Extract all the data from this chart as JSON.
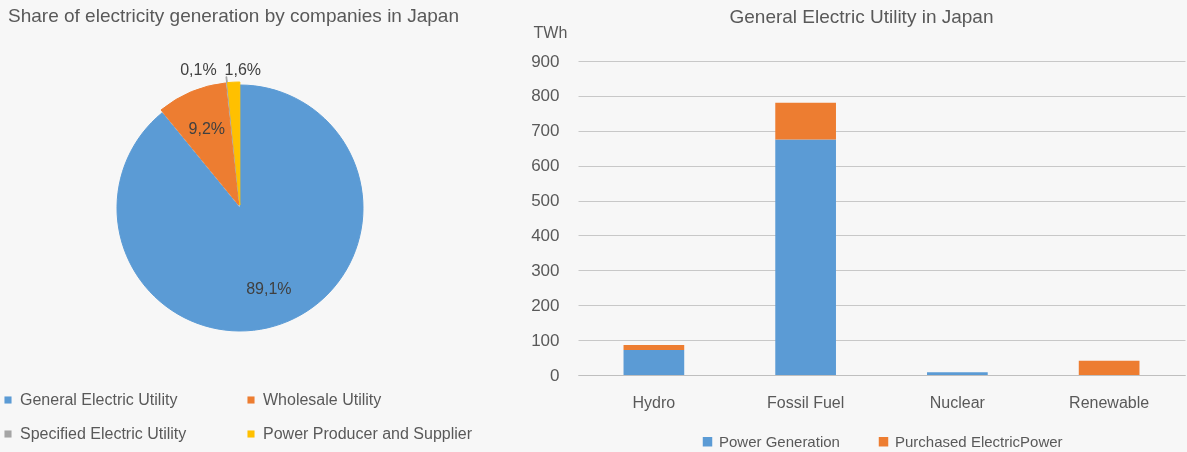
{
  "chart_data": [
    {
      "type": "pie",
      "title": "Share of electricity generation by companies in Japan",
      "categories": [
        "General Electric Utility",
        "Wholesale Utility",
        "Specified Electric Utility",
        "Power Producer and Supplier"
      ],
      "values": [
        89.1,
        9.2,
        0.1,
        1.6
      ],
      "colors": [
        "#5b9bd5",
        "#ed7d31",
        "#a5a5a5",
        "#ffc000"
      ],
      "value_labels": [
        "89,1%",
        "9,2%",
        "0,1%",
        "1,6%"
      ],
      "legend": "bottom"
    },
    {
      "type": "bar",
      "title": "General Electric Utility in Japan",
      "ylabel": "TWh",
      "categories": [
        "Hydro",
        "Fossil Fuel",
        "Nuclear",
        "Renewable"
      ],
      "stacked": true,
      "series": [
        {
          "name": "Power Generation",
          "color": "#5b9bd5",
          "values": [
            72,
            675,
            8,
            null
          ]
        },
        {
          "name": "Purchased ElectricPower",
          "color": "#ed7d31",
          "values": [
            14,
            105,
            null,
            41
          ]
        }
      ],
      "ylim": [
        0,
        900
      ],
      "yticks": [
        0,
        100,
        200,
        300,
        400,
        500,
        600,
        700,
        800,
        900
      ],
      "grid": "y",
      "legend": "bottom"
    }
  ]
}
